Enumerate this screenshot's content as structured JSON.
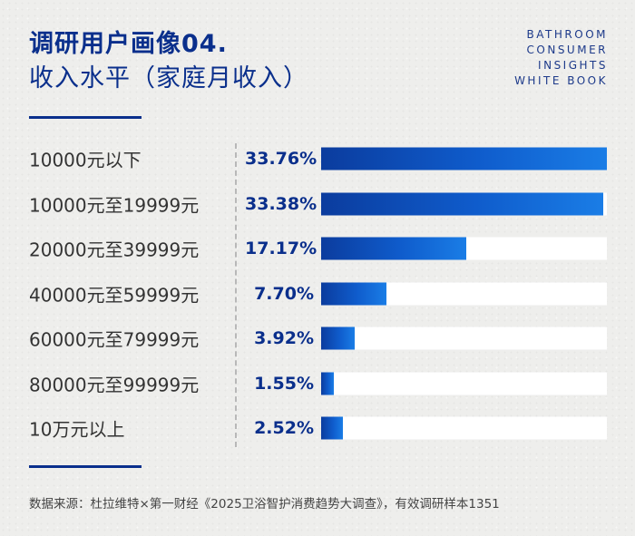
{
  "title": "调研用户画像04.",
  "subtitle": "收入水平（家庭月收入）",
  "brand": [
    "BATHROOM",
    "CONSUMER",
    "INSIGHTS",
    "WHITE BOOK"
  ],
  "source": "数据来源：杜拉维特×第一财经《2025卫浴智护消费趋势大调查》，有效调研样本1351",
  "colors": {
    "accent": "#0a2f8c",
    "bar": "#0f5ccc",
    "track": "#ffffff"
  },
  "chart_data": {
    "type": "bar",
    "orientation": "horizontal",
    "title": "收入水平（家庭月收入）",
    "categories": [
      "10000元以下",
      "10000元至19999元",
      "20000元至39999元",
      "40000元至59999元",
      "60000元至79999元",
      "80000元至99999元",
      "10万元以上"
    ],
    "values": [
      33.76,
      33.38,
      17.17,
      7.7,
      3.92,
      1.55,
      2.52
    ],
    "value_labels": [
      "33.76%",
      "33.38%",
      "17.17%",
      "7.70%",
      "3.92%",
      "1.55%",
      "2.52%"
    ],
    "unit": "%",
    "xlim": [
      0,
      33.76
    ],
    "grid": false,
    "legend": "none"
  }
}
